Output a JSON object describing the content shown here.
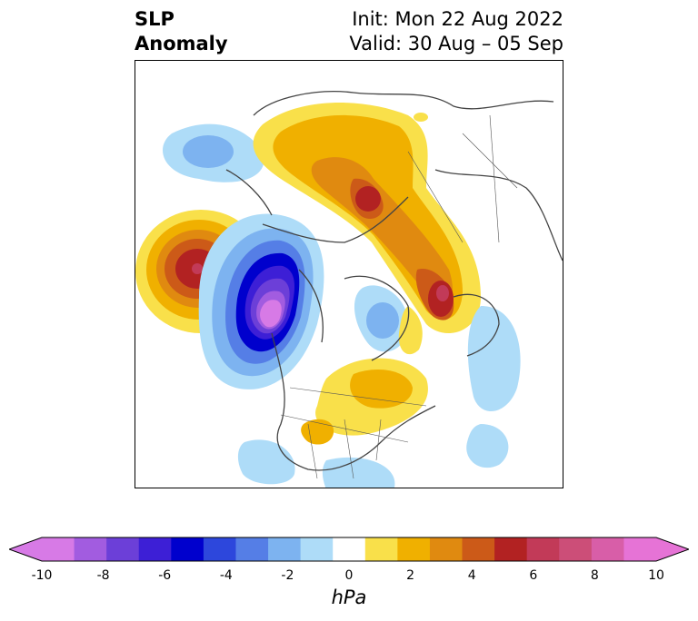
{
  "title": {
    "left_line1": "SLP",
    "left_line2": "Anomaly",
    "right_line1": "Init: Mon 22 Aug 2022",
    "right_line2": "Valid: 30 Aug – 05 Sep"
  },
  "colorbar": {
    "unit": "hPa",
    "tick_labels": [
      "-10",
      "-8",
      "-6",
      "-4",
      "-2",
      "0",
      "2",
      "4",
      "6",
      "8",
      "10"
    ],
    "levels": [
      -10,
      -9,
      -8,
      -7,
      -6,
      -5,
      -4,
      -3,
      -2,
      -1,
      1,
      2,
      3,
      4,
      5,
      6,
      7,
      8,
      9,
      10
    ],
    "colors": [
      "#d77ae6",
      "#a25ce0",
      "#6c3fd8",
      "#3d1fd6",
      "#0000cd",
      "#2d47dc",
      "#557ee6",
      "#7db3f0",
      "#aedcf8",
      "#ffffff",
      "#f9e04a",
      "#f0b000",
      "#e08a10",
      "#cc5a18",
      "#b22222",
      "#c23a58",
      "#cc4e78",
      "#d85ea8",
      "#e673d6"
    ],
    "extend": "both"
  },
  "map": {
    "projection": "north polar stereographic",
    "variable": "sea level pressure anomaly",
    "features": [
      {
        "name": "Aleutian / North Pacific high anomaly",
        "center_value": 6
      },
      {
        "name": "Gulf of Alaska / Western Canada low anomaly",
        "center_value": -9
      },
      {
        "name": "Scandinavia high anomaly",
        "center_value": 6
      },
      {
        "name": "Siberia positive anomaly band",
        "center_value": 6
      },
      {
        "name": "Northeast US / Atlantic positive anomaly",
        "center_value": 2
      },
      {
        "name": "North Atlantic weak negative anomaly",
        "center_value": -2
      }
    ]
  }
}
